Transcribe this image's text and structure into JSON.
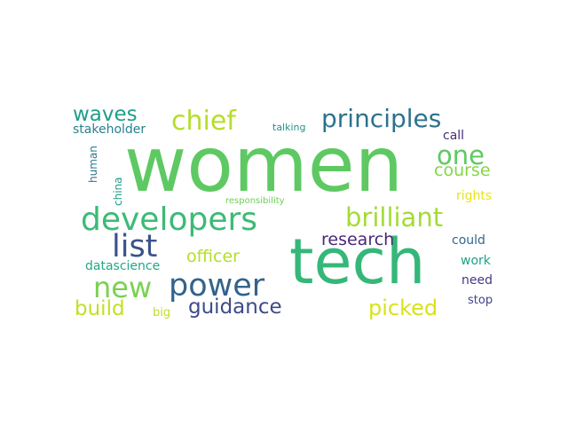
{
  "word_cloud": {
    "words": [
      {
        "id": "women",
        "text": "women",
        "color": "#5ec962"
      },
      {
        "id": "tech",
        "text": "tech",
        "color": "#35b779"
      },
      {
        "id": "developers",
        "text": "developers",
        "color": "#3bbb75"
      },
      {
        "id": "chief",
        "text": "chief",
        "color": "#b5de2b"
      },
      {
        "id": "principles",
        "text": "principles",
        "color": "#2c728e"
      },
      {
        "id": "brilliant",
        "text": "brilliant",
        "color": "#a5db36"
      },
      {
        "id": "list",
        "text": "list",
        "color": "#3b528b"
      },
      {
        "id": "power",
        "text": "power",
        "color": "#33638d"
      },
      {
        "id": "new",
        "text": "new",
        "color": "#7ad151"
      },
      {
        "id": "one",
        "text": "one",
        "color": "#5ec962"
      },
      {
        "id": "waves",
        "text": "waves",
        "color": "#1f9e89"
      },
      {
        "id": "course",
        "text": "course",
        "color": "#86d549"
      },
      {
        "id": "research",
        "text": "research",
        "color": "#482878"
      },
      {
        "id": "officer",
        "text": "officer",
        "color": "#b5de2b"
      },
      {
        "id": "guidance",
        "text": "guidance",
        "color": "#3e4a89"
      },
      {
        "id": "build",
        "text": "build",
        "color": "#c2df23"
      },
      {
        "id": "picked",
        "text": "picked",
        "color": "#d8e219"
      },
      {
        "id": "stakeholder",
        "text": "stakeholder",
        "color": "#26828e"
      },
      {
        "id": "talking",
        "text": "talking",
        "color": "#21918c"
      },
      {
        "id": "call",
        "text": "call",
        "color": "#472d7b"
      },
      {
        "id": "human",
        "text": "human",
        "color": "#2a788e"
      },
      {
        "id": "china",
        "text": "china",
        "color": "#1f9e89"
      },
      {
        "id": "responsibility",
        "text": "responsibility",
        "color": "#6ece58"
      },
      {
        "id": "rights",
        "text": "rights",
        "color": "#e7e419"
      },
      {
        "id": "could",
        "text": "could",
        "color": "#31688e"
      },
      {
        "id": "datascience",
        "text": "datascience",
        "color": "#22a884"
      },
      {
        "id": "work",
        "text": "work",
        "color": "#1fa187"
      },
      {
        "id": "need",
        "text": "need",
        "color": "#443983"
      },
      {
        "id": "big",
        "text": "big",
        "color": "#bddf26"
      },
      {
        "id": "stop",
        "text": "stop",
        "color": "#414487"
      }
    ]
  }
}
